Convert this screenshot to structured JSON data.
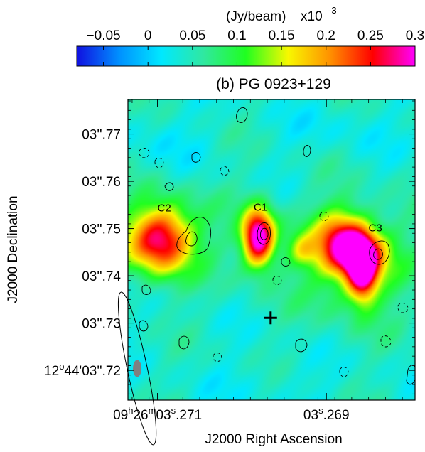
{
  "chart_data": {
    "type": "heatmap",
    "title": "(b) PG 0923+129",
    "colorbar": {
      "label": "(Jy/beam)",
      "multiplier": "x10",
      "exponent": "-3",
      "range": [
        -0.08,
        0.3
      ],
      "ticks": [
        {
          "v": -0.05,
          "label": "−0.05"
        },
        {
          "v": 0,
          "label": "0"
        },
        {
          "v": 0.05,
          "label": "0.05"
        },
        {
          "v": 0.1,
          "label": "0.1"
        },
        {
          "v": 0.15,
          "label": "0.15"
        },
        {
          "v": 0.2,
          "label": "0.2"
        },
        {
          "v": 0.25,
          "label": "0.25"
        },
        {
          "v": 0.3,
          "label": "0.3"
        }
      ],
      "colors": [
        "#1010e0",
        "#0090ff",
        "#00e8ff",
        "#30e8a0",
        "#20ff20",
        "#f8f800",
        "#ff9000",
        "#ff0000",
        "#ff00ff"
      ]
    },
    "xlabel": "J2000 Right Ascension",
    "ylabel": "J2000 Declination",
    "xlim": [
      3.27135,
      3.26795
    ],
    "ylim": [
      3.7137,
      3.7773
    ],
    "xticks": [
      {
        "v": 3.271,
        "h": "09",
        "m": "26",
        "s": "03",
        "frac": ".271"
      },
      {
        "v": 3.269,
        "s": "03",
        "frac": ".269"
      }
    ],
    "yticks": [
      {
        "v": 3.77,
        "label": "03''.77"
      },
      {
        "v": 3.76,
        "label": "03''.76"
      },
      {
        "v": 3.75,
        "label": "03''.75"
      },
      {
        "v": 3.74,
        "label": "03''.74"
      },
      {
        "v": 3.73,
        "label": "03''.73"
      },
      {
        "v": 3.72,
        "label": "03''.72",
        "prefix": "12",
        "prefix2": "44'"
      }
    ],
    "background_level": 0.04,
    "components": [
      {
        "name": "C2",
        "ra": 3.27097,
        "dec": 3.7478,
        "peak": 0.24,
        "label_ra": 3.27092,
        "label_dec": 3.7536
      },
      {
        "name": "C1",
        "ra": 3.26981,
        "dec": 3.7482,
        "peak": 0.3,
        "label_ra": 3.26978,
        "label_dec": 3.7538
      },
      {
        "name": "C3",
        "ra": 3.2686,
        "dec": 3.7445,
        "peak": 0.23,
        "label_ra": 3.26842,
        "label_dec": 3.7494
      }
    ],
    "optical_position": {
      "ra": 3.26966,
      "dec": 3.7311,
      "marker": "+"
    },
    "beam": {
      "ra": 3.27124,
      "dec": 3.7204,
      "major_arcsec": 0.01,
      "minor_arcsec": 0.0037,
      "pa_deg": 10
    }
  }
}
